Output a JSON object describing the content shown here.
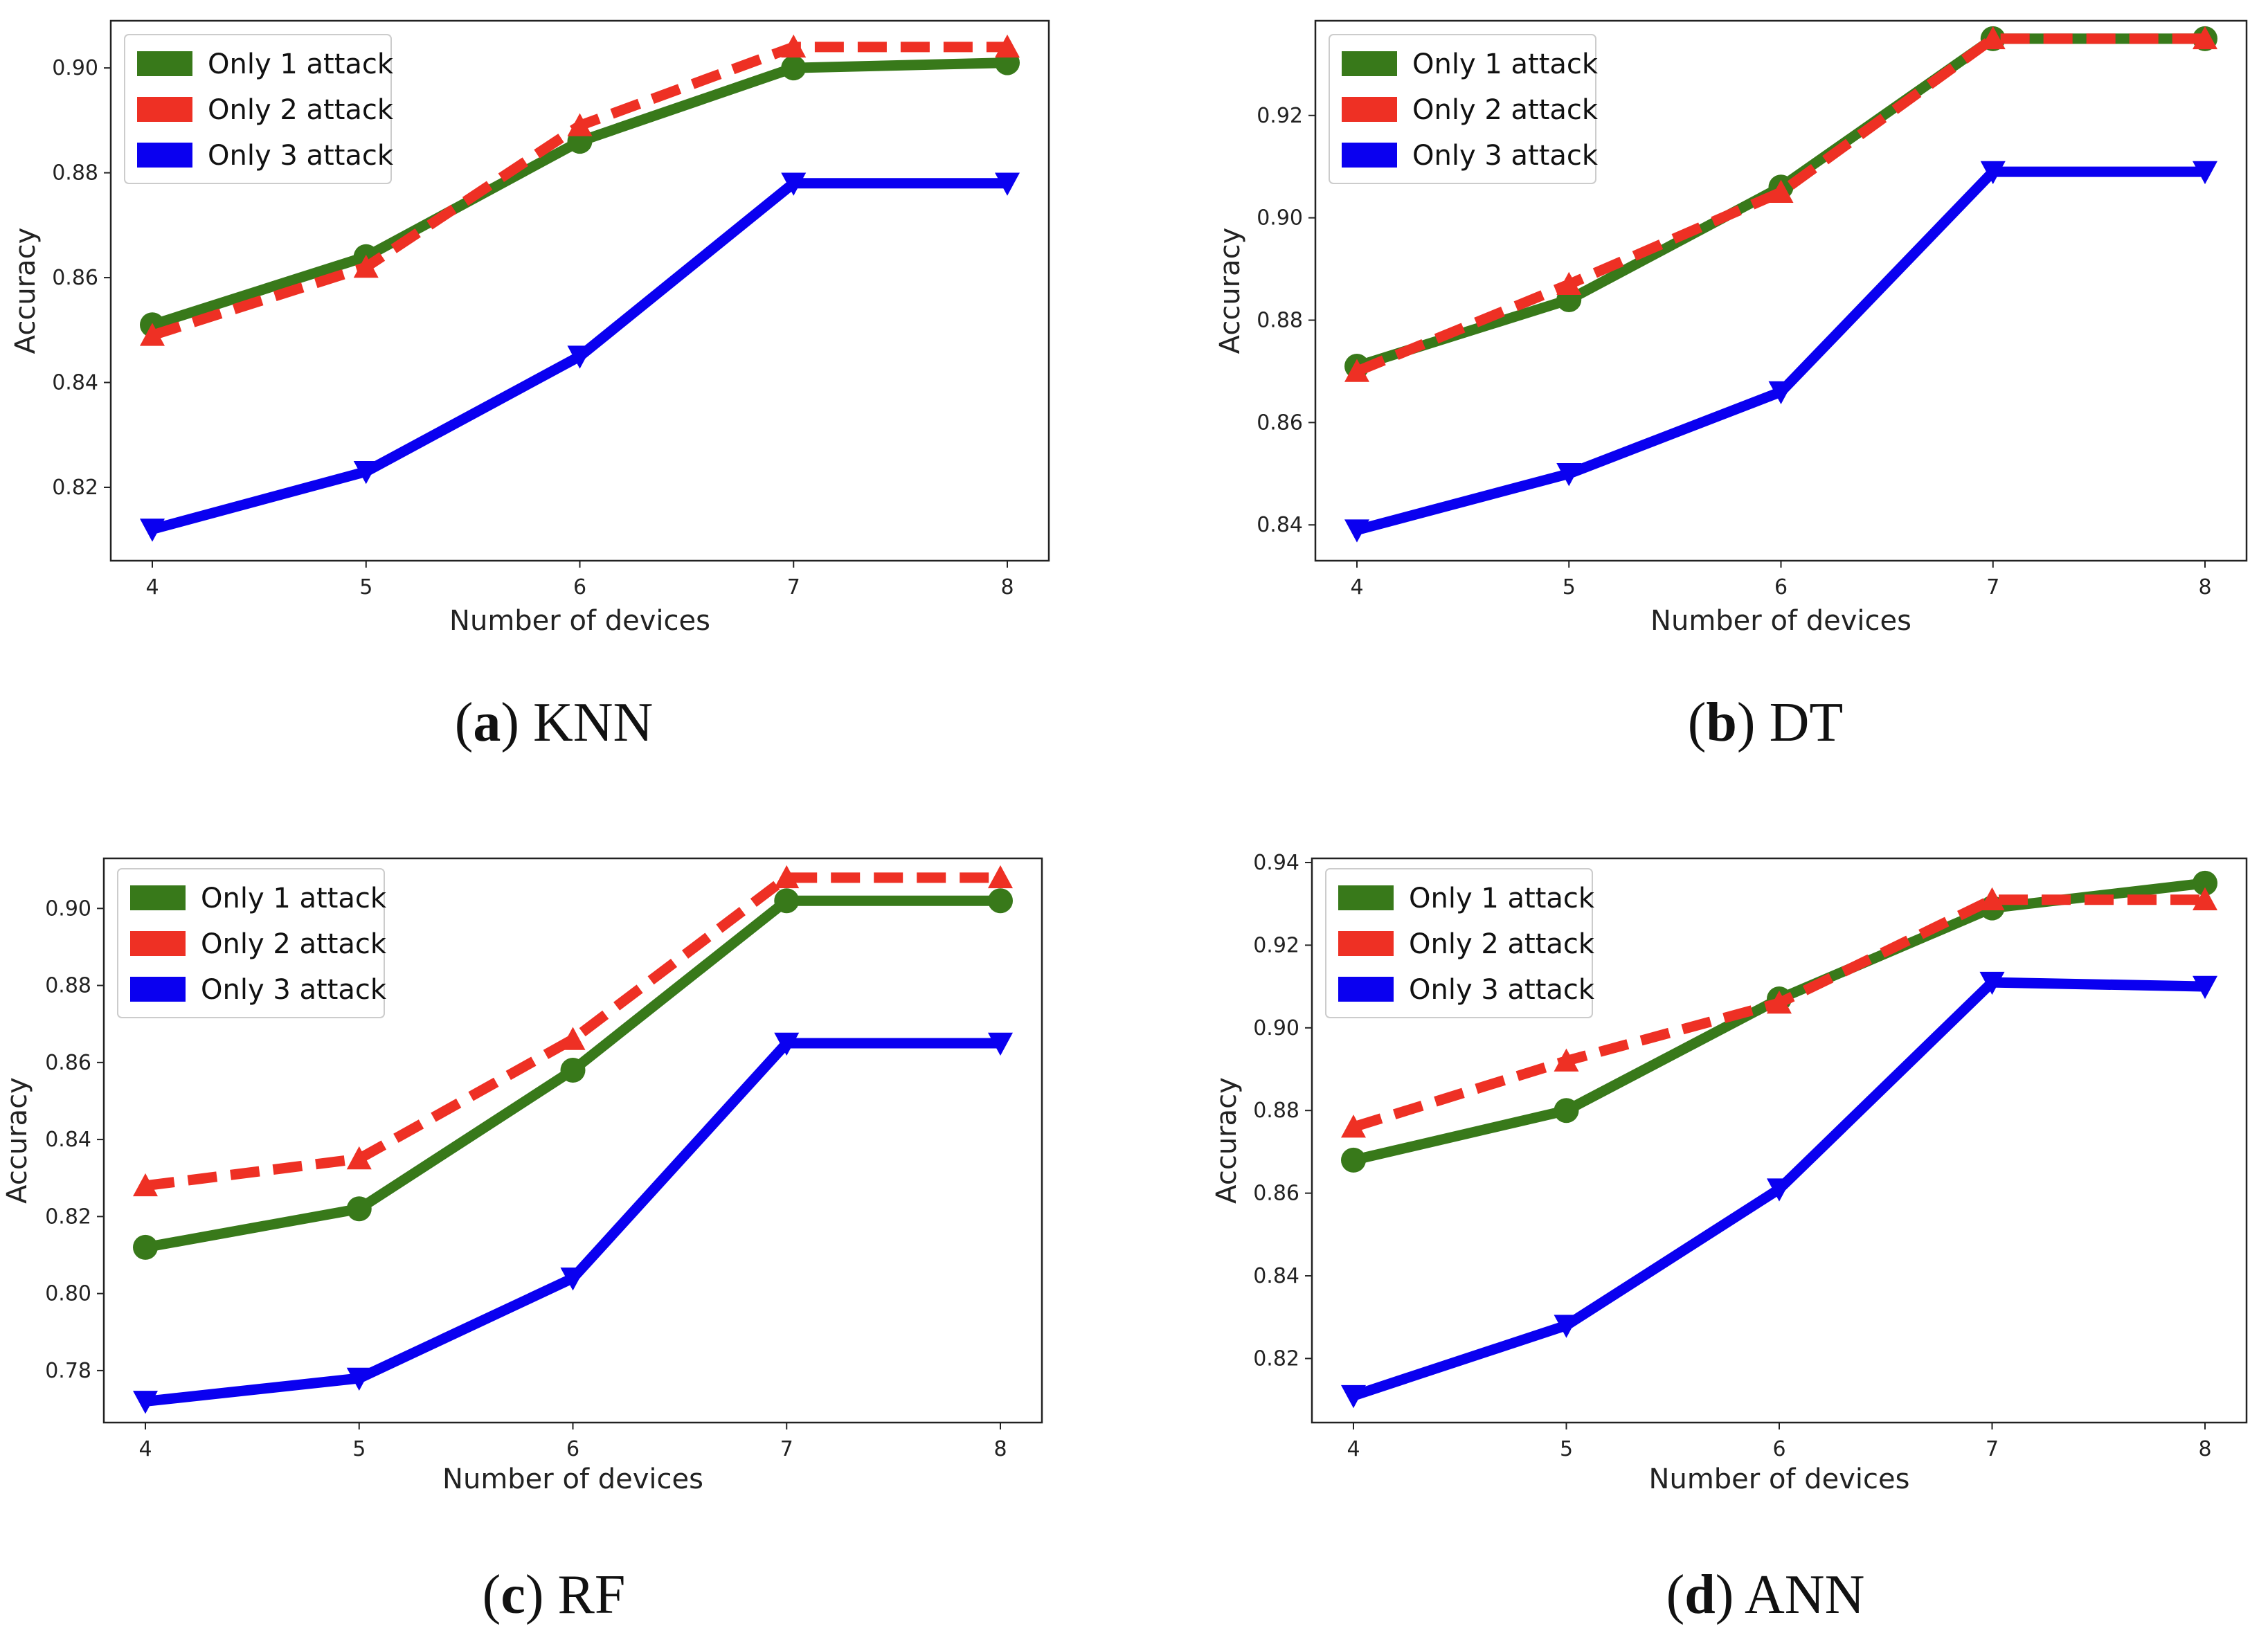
{
  "figure": {
    "series_style": {
      "Only 1 attack": {
        "color": "#38791a",
        "marker": "circle",
        "dash": "solid"
      },
      "Only 2 attack": {
        "color": "#ee3024",
        "marker": "triangle-up",
        "dash": "dashed"
      },
      "Only 3 attack": {
        "color": "#0a00f0",
        "marker": "triangle-down",
        "dash": "solid"
      }
    }
  },
  "chart_data": [
    {
      "type": "line",
      "id": "a",
      "caption_letter": "a",
      "caption_name": "KNN",
      "xlabel": "Number of devices",
      "ylabel": "Accuracy",
      "x": [
        4,
        5,
        6,
        7,
        8
      ],
      "xticks": [
        "4",
        "5",
        "6",
        "7",
        "8"
      ],
      "ylim": [
        0.806,
        0.909
      ],
      "yticks": [
        0.82,
        0.84,
        0.86,
        0.88,
        0.9
      ],
      "ytick_labels": [
        "0.82",
        "0.84",
        "0.86",
        "0.88",
        "0.90"
      ],
      "legend": "top-left",
      "series": [
        {
          "name": "Only 1 attack",
          "values": [
            0.851,
            0.864,
            0.886,
            0.9,
            0.901
          ]
        },
        {
          "name": "Only 2 attack",
          "values": [
            0.849,
            0.862,
            0.889,
            0.904,
            0.904
          ]
        },
        {
          "name": "Only 3 attack",
          "values": [
            0.812,
            0.823,
            0.845,
            0.878,
            0.878
          ]
        }
      ]
    },
    {
      "type": "line",
      "id": "b",
      "caption_letter": "b",
      "caption_name": "DT",
      "xlabel": "Number of devices",
      "ylabel": "Accuracy",
      "x": [
        4,
        5,
        6,
        7,
        8
      ],
      "xticks": [
        "4",
        "5",
        "6",
        "7",
        "8"
      ],
      "ylim": [
        0.833,
        0.9385
      ],
      "yticks": [
        0.84,
        0.86,
        0.88,
        0.9,
        0.92
      ],
      "ytick_labels": [
        "0.84",
        "0.86",
        "0.88",
        "0.90",
        "0.92"
      ],
      "legend": "top-left",
      "series": [
        {
          "name": "Only 1 attack",
          "values": [
            0.871,
            0.884,
            0.906,
            0.935,
            0.935
          ]
        },
        {
          "name": "Only 2 attack",
          "values": [
            0.87,
            0.887,
            0.905,
            0.935,
            0.935
          ]
        },
        {
          "name": "Only 3 attack",
          "values": [
            0.839,
            0.85,
            0.866,
            0.909,
            0.909
          ]
        }
      ]
    },
    {
      "type": "line",
      "id": "c",
      "caption_letter": "c",
      "caption_name": "RF",
      "xlabel": "Number of devices",
      "ylabel": "Accuracy",
      "x": [
        4,
        5,
        6,
        7,
        8
      ],
      "xticks": [
        "4",
        "5",
        "6",
        "7",
        "8"
      ],
      "ylim": [
        0.7665,
        0.913
      ],
      "yticks": [
        0.78,
        0.8,
        0.82,
        0.84,
        0.86,
        0.88,
        0.9
      ],
      "ytick_labels": [
        "0.78",
        "0.80",
        "0.82",
        "0.84",
        "0.86",
        "0.88",
        "0.90"
      ],
      "legend": "top-left",
      "series": [
        {
          "name": "Only 1 attack",
          "values": [
            0.812,
            0.822,
            0.858,
            0.902,
            0.902
          ]
        },
        {
          "name": "Only 2 attack",
          "values": [
            0.828,
            0.835,
            0.866,
            0.908,
            0.908
          ]
        },
        {
          "name": "Only 3 attack",
          "values": [
            0.772,
            0.778,
            0.804,
            0.865,
            0.865
          ]
        }
      ]
    },
    {
      "type": "line",
      "id": "d",
      "caption_letter": "d",
      "caption_name": "ANN",
      "xlabel": "Number of devices",
      "ylabel": "Accuracy",
      "x": [
        4,
        5,
        6,
        7,
        8
      ],
      "xticks": [
        "4",
        "5",
        "6",
        "7",
        "8"
      ],
      "ylim": [
        0.8045,
        0.941
      ],
      "yticks": [
        0.82,
        0.84,
        0.86,
        0.88,
        0.9,
        0.92,
        0.94
      ],
      "ytick_labels": [
        "0.82",
        "0.84",
        "0.86",
        "0.88",
        "0.90",
        "0.92",
        "0.94"
      ],
      "legend": "top-left",
      "series": [
        {
          "name": "Only 1 attack",
          "values": [
            0.868,
            0.88,
            0.907,
            0.929,
            0.935
          ]
        },
        {
          "name": "Only 2 attack",
          "values": [
            0.876,
            0.892,
            0.906,
            0.931,
            0.931
          ]
        },
        {
          "name": "Only 3 attack",
          "values": [
            0.811,
            0.828,
            0.861,
            0.911,
            0.91
          ]
        }
      ]
    }
  ]
}
